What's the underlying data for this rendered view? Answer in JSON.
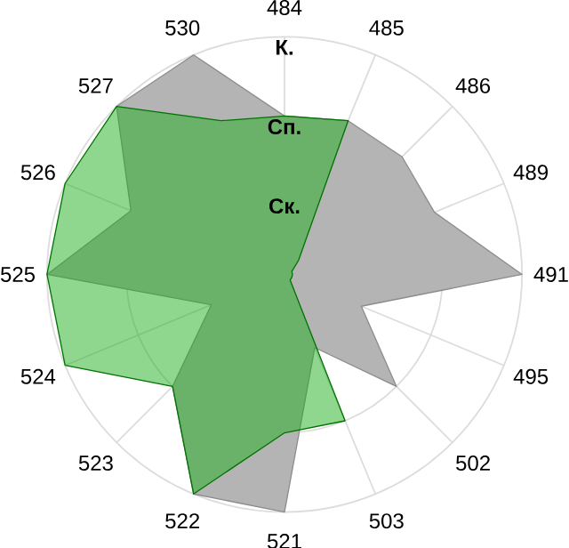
{
  "chart_data": {
    "type": "radar",
    "categories": [
      "484",
      "485",
      "486",
      "489",
      "491",
      "495",
      "502",
      "503",
      "521",
      "522",
      "523",
      "524",
      "525",
      "526",
      "527",
      "530"
    ],
    "ylim": [
      0,
      3
    ],
    "yticks": [
      {
        "value": 1,
        "label": "Ск."
      },
      {
        "value": 2,
        "label": "Сп."
      },
      {
        "value": 3,
        "label": "К."
      }
    ],
    "grid": true,
    "series": [
      {
        "color": "#b4b4b4",
        "values": [
          2.0,
          2.1,
          2.1,
          2.05,
          3.0,
          1.05,
          2.0,
          1.0,
          3.0,
          3.0,
          2.0,
          1.0,
          3.0,
          2.1,
          3.0,
          3.0
        ]
      },
      {
        "color": "#1fad1f",
        "values": [
          2.0,
          2.1,
          0.25,
          0.1,
          0.1,
          0.1,
          0.1,
          2.0,
          2.0,
          3.0,
          2.0,
          3.0,
          3.0,
          3.0,
          3.0,
          2.1
        ]
      }
    ]
  }
}
